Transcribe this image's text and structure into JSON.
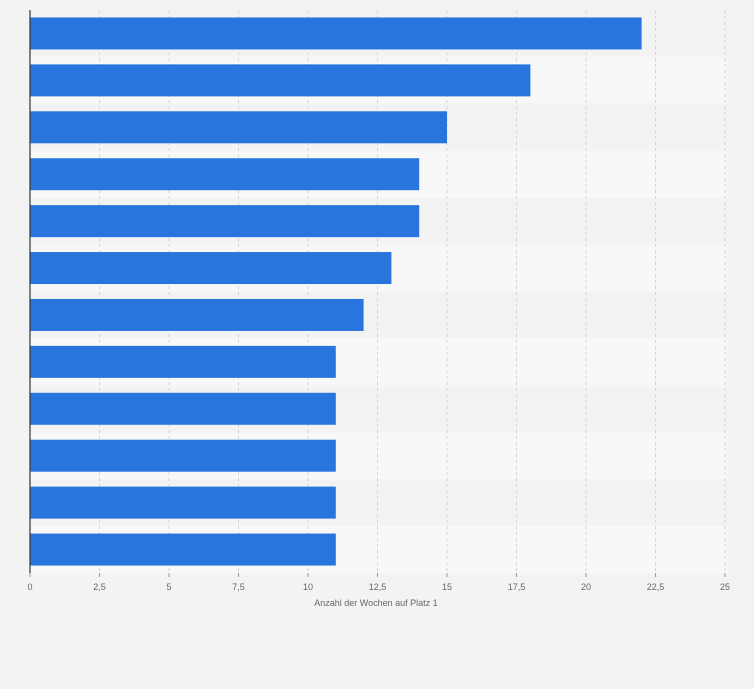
{
  "chart_data": {
    "type": "bar",
    "orientation": "horizontal",
    "categories": [
      "",
      "",
      "",
      "",
      "",
      "",
      "",
      "",
      "",
      "",
      "",
      ""
    ],
    "series": [
      {
        "values": [
          22,
          18,
          15,
          14,
          14,
          13,
          12,
          11,
          11,
          11,
          11,
          11
        ]
      }
    ],
    "xlabel": "Anzahl der Wochen auf Platz 1",
    "ylabel": "",
    "xlim": [
      0,
      25
    ],
    "xticks": [
      "0",
      "2,5",
      "5",
      "7,5",
      "10",
      "12,5",
      "15",
      "17,5",
      "20",
      "22,5",
      "25"
    ],
    "grid": true,
    "legend": "none",
    "colors": {
      "bar": "#2876dd",
      "band_light": "#f8f8f8",
      "band_dark": "#f3f3f3",
      "grid": "#d4d4d4",
      "axis": "#333333",
      "text": "#666666"
    }
  }
}
